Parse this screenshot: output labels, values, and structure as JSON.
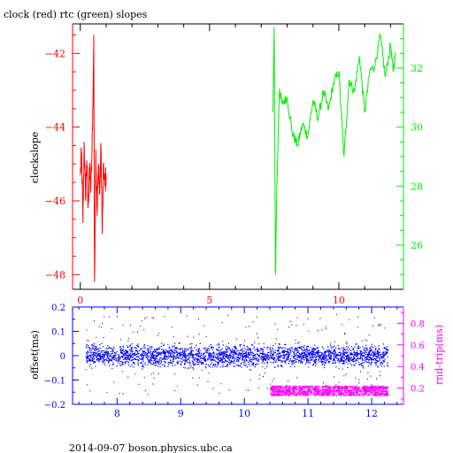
{
  "colors": {
    "clock": "#ff0000",
    "rtc": "#00ee00",
    "offset": "#0000ff",
    "rndtrip": "#ff00ff",
    "axis_black": "#000000"
  },
  "chart_data": [
    {
      "type": "line",
      "title": "clock (red) rtc (green) slopes",
      "ylabel": "clockslope",
      "xlim": [
        -0.3,
        12.5
      ],
      "x_ticks": [
        0,
        5,
        10
      ],
      "ylim_left": [
        -48.4,
        -41.2
      ],
      "y_ticks_left": [
        -48,
        -46,
        -44,
        -42
      ],
      "ylim_right": [
        24.5,
        33.5
      ],
      "y_ticks_right": [
        26,
        28,
        30,
        32
      ],
      "grid": false,
      "series": [
        {
          "name": "clock",
          "axis": "left",
          "x": [
            0.0,
            0.05,
            0.1,
            0.15,
            0.2,
            0.25,
            0.3,
            0.35,
            0.4,
            0.45,
            0.5,
            0.52,
            0.55,
            0.6,
            0.65,
            0.7,
            0.75,
            0.8,
            0.85,
            0.9,
            0.95,
            1.0
          ],
          "y": [
            -45.3,
            -44.7,
            -46.6,
            -44.4,
            -45.9,
            -44.9,
            -46.2,
            -45.1,
            -45.7,
            -44.8,
            -42.8,
            -41.5,
            -48.2,
            -44.6,
            -46.4,
            -45.0,
            -45.8,
            -44.5,
            -46.9,
            -45.0,
            -45.6,
            -45.3
          ]
        },
        {
          "name": "rtc",
          "axis": "right",
          "x": [
            7.45,
            7.5,
            7.55,
            7.6,
            7.7,
            7.8,
            8.0,
            8.2,
            8.4,
            8.6,
            8.8,
            9.0,
            9.2,
            9.4,
            9.6,
            9.8,
            10.0,
            10.2,
            10.4,
            10.6,
            10.8,
            11.0,
            11.2,
            11.4,
            11.6,
            11.8,
            12.0,
            12.1,
            12.2
          ],
          "y": [
            30.5,
            33.4,
            25.0,
            27.8,
            31.3,
            30.8,
            31.0,
            29.8,
            29.4,
            30.1,
            29.7,
            30.9,
            30.3,
            31.2,
            30.6,
            31.5,
            31.9,
            29.0,
            31.6,
            31.2,
            32.4,
            30.5,
            31.9,
            32.1,
            33.1,
            31.7,
            32.8,
            31.9,
            32.5
          ]
        }
      ]
    },
    {
      "type": "scatter",
      "ylabel": "offset(ms)",
      "ylabel_right": "rnd-trip(ms)",
      "xlim": [
        7.3,
        12.5
      ],
      "x_ticks": [
        8,
        9,
        10,
        11,
        12
      ],
      "ylim_left": [
        -0.2,
        0.2
      ],
      "y_ticks_left": [
        -0.2,
        -0.1,
        0,
        0.1,
        0.2
      ],
      "ylim_right": [
        0.05,
        0.95
      ],
      "y_ticks_right": [
        0.2,
        0.4,
        0.6,
        0.8
      ],
      "series": [
        {
          "name": "offset",
          "axis": "left",
          "x_range": [
            7.5,
            12.25
          ],
          "center": 0.0,
          "band": [
            -0.03,
            0.03
          ],
          "outlier_range": [
            -0.16,
            0.17
          ]
        },
        {
          "name": "rnd-trip",
          "axis": "right",
          "x_range": [
            10.4,
            12.25
          ],
          "center": 0.17,
          "band": [
            0.13,
            0.22
          ]
        }
      ]
    }
  ],
  "footer": "2014-09-07 boson.physics.ubc.ca"
}
